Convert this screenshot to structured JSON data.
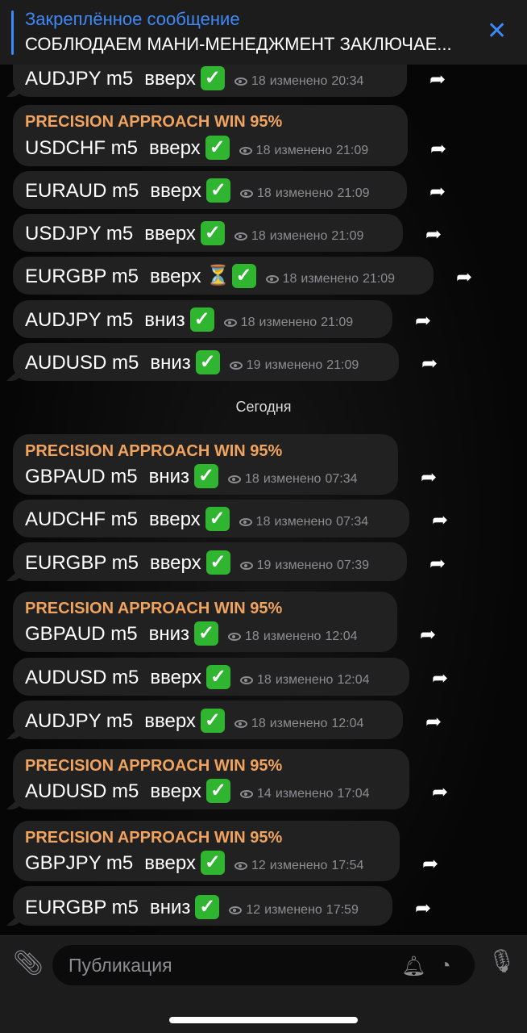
{
  "pinned": {
    "title": "Закреплённое сообщение",
    "text": "СОБЛЮДАЕМ МАНИ-МЕНЕДЖМЕНТ ЗАКЛЮЧАЕ...",
    "close_icon": "close-icon"
  },
  "date_separator": "Сегодня",
  "messages": [
    {
      "header": "",
      "pair": "AUDJPY m5",
      "dir": "вверх",
      "hourglass": false,
      "views": "18",
      "edited": "изменено",
      "time": "20:34"
    },
    {
      "header": "PRECISION APPROACH WIN 95%",
      "pair": "USDCHF m5",
      "dir": "вверх",
      "hourglass": false,
      "views": "18",
      "edited": "изменено",
      "time": "21:09"
    },
    {
      "header": "",
      "pair": "EURAUD m5",
      "dir": "вверх",
      "hourglass": false,
      "views": "18",
      "edited": "изменено",
      "time": "21:09"
    },
    {
      "header": "",
      "pair": "USDJPY m5",
      "dir": "вверх",
      "hourglass": false,
      "views": "18",
      "edited": "изменено",
      "time": "21:09"
    },
    {
      "header": "",
      "pair": "EURGBP m5",
      "dir": "вверх",
      "hourglass": true,
      "views": "18",
      "edited": "изменено",
      "time": "21:09"
    },
    {
      "header": "",
      "pair": "AUDJPY m5",
      "dir": "вниз",
      "hourglass": false,
      "views": "18",
      "edited": "изменено",
      "time": "21:09"
    },
    {
      "header": "",
      "pair": "AUDUSD m5",
      "dir": "вниз",
      "hourglass": false,
      "views": "19",
      "edited": "изменено",
      "time": "21:09"
    },
    {
      "header": "PRECISION APPROACH WIN 95%",
      "pair": "GBPAUD m5",
      "dir": "вниз",
      "hourglass": false,
      "views": "18",
      "edited": "изменено",
      "time": "07:34"
    },
    {
      "header": "",
      "pair": "AUDCHF m5",
      "dir": "вверх",
      "hourglass": false,
      "views": "18",
      "edited": "изменено",
      "time": "07:34"
    },
    {
      "header": "",
      "pair": "EURGBP m5",
      "dir": "вверх",
      "hourglass": false,
      "views": "19",
      "edited": "изменено",
      "time": "07:39"
    },
    {
      "header": "PRECISION APPROACH WIN 95%",
      "pair": "GBPAUD m5",
      "dir": "вниз",
      "hourglass": false,
      "views": "18",
      "edited": "изменено",
      "time": "12:04"
    },
    {
      "header": "",
      "pair": "AUDUSD m5",
      "dir": "вверх",
      "hourglass": false,
      "views": "18",
      "edited": "изменено",
      "time": "12:04"
    },
    {
      "header": "",
      "pair": "AUDJPY m5",
      "dir": "вверх",
      "hourglass": false,
      "views": "18",
      "edited": "изменено",
      "time": "12:04"
    },
    {
      "header": "PRECISION APPROACH WIN 95%",
      "pair": "AUDUSD m5",
      "dir": "вверх",
      "hourglass": false,
      "views": "14",
      "edited": "изменено",
      "time": "17:04"
    },
    {
      "header": "PRECISION APPROACH WIN 95%",
      "pair": "GBPJPY m5",
      "dir": "вверх",
      "hourglass": false,
      "views": "12",
      "edited": "изменено",
      "time": "17:54"
    },
    {
      "header": "",
      "pair": "EURGBP m5",
      "dir": "вниз",
      "hourglass": false,
      "views": "12",
      "edited": "изменено",
      "time": "17:59"
    }
  ],
  "composer": {
    "placeholder": "Публикация"
  },
  "colors": {
    "accent": "#3e88f7",
    "header": "#f0a35e",
    "bubble": "#212121",
    "check": "#2fb52f"
  }
}
